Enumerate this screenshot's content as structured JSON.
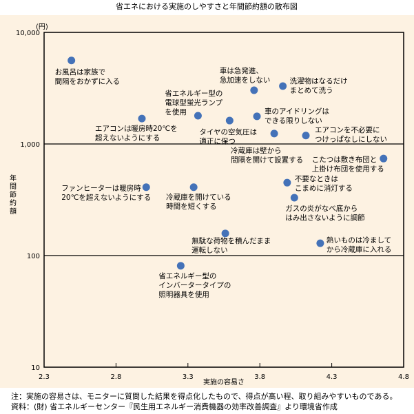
{
  "chart_data": {
    "type": "scatter",
    "title": "省エネにおける実施のしやすさと年間節約額の散布図",
    "xlabel": "実施の容易さ",
    "ylabel": "年間節約額",
    "yunit": "(円)",
    "xlim": [
      2.3,
      4.8
    ],
    "ylim": [
      10,
      10000
    ],
    "yscale": "log",
    "xticks": [
      "2.3",
      "2.8",
      "3.3",
      "3.8",
      "4.3",
      "4.8"
    ],
    "yticks": [
      "10",
      "100",
      "1,000",
      "10,000"
    ],
    "grid": "horizontal at 100 and 1,000",
    "point_color": "#4472b8",
    "background_color": "#fdf2e2",
    "points": [
      {
        "x": 2.49,
        "y": 5600,
        "label": [
          "お風呂は家族で",
          "間隔をおかずに入る"
        ]
      },
      {
        "x": 2.98,
        "y": 1690,
        "label": [
          "エアコンは暖房時20℃を",
          "超えないようにする"
        ]
      },
      {
        "x": 3.37,
        "y": 1790,
        "label": [
          "省エネルギー型の",
          "電球型蛍光ランプ",
          "を使用"
        ]
      },
      {
        "x": 3.59,
        "y": 1620,
        "label": [
          "タイヤの空気圧は",
          "適正に保つ"
        ]
      },
      {
        "x": 3.76,
        "y": 3030,
        "label": [
          "車は急発進、",
          "急加速をしない"
        ]
      },
      {
        "x": 3.96,
        "y": 3300,
        "label": [
          "洗濯物はなるだけ",
          "まとめて洗う"
        ]
      },
      {
        "x": 3.78,
        "y": 1770,
        "label": [
          "車のアイドリングは",
          "できる限りしない"
        ]
      },
      {
        "x": 3.9,
        "y": 1240,
        "label": [
          "冷蔵庫は壁から",
          "間隔を開けて設置する"
        ]
      },
      {
        "x": 4.12,
        "y": 1190,
        "label": [
          "エアコンを不必要に",
          "つけっぱなしにしない"
        ]
      },
      {
        "x": 4.66,
        "y": 740,
        "label": [
          "こたつは敷き布団と",
          "上掛け布団を使用する"
        ]
      },
      {
        "x": 3.01,
        "y": 410,
        "label": [
          "ファンヒーターは暖房時",
          "20℃を超えないようにする"
        ]
      },
      {
        "x": 3.34,
        "y": 410,
        "label": [
          "冷蔵庫を開けている",
          "時間を短くする"
        ]
      },
      {
        "x": 3.99,
        "y": 450,
        "label": [
          "不要なときは",
          "こまめに消灯する"
        ]
      },
      {
        "x": 4.04,
        "y": 330,
        "label": [
          "ガスの炎がなべ底から",
          "はみ出さないように調節"
        ]
      },
      {
        "x": 3.56,
        "y": 158,
        "label": [
          "無駄な荷物を積んだまま",
          "運転しない"
        ]
      },
      {
        "x": 4.22,
        "y": 129,
        "label": [
          "熱いものは冷まして",
          "から冷蔵庫に入れる"
        ]
      },
      {
        "x": 3.25,
        "y": 81,
        "label": [
          "省エネルギー型の",
          "インバータータイプの",
          "照明器具を使用"
        ]
      }
    ]
  },
  "notes": {
    "note": "注：実施の容易さは、モニターに質問した結果を得点化したもので、得点が高い程、取り組みやすいものである。",
    "source": "資料：(財) 省エネルギーセンター『民生用エネルギー消費機器の効率改善調査』より環境省作成"
  }
}
